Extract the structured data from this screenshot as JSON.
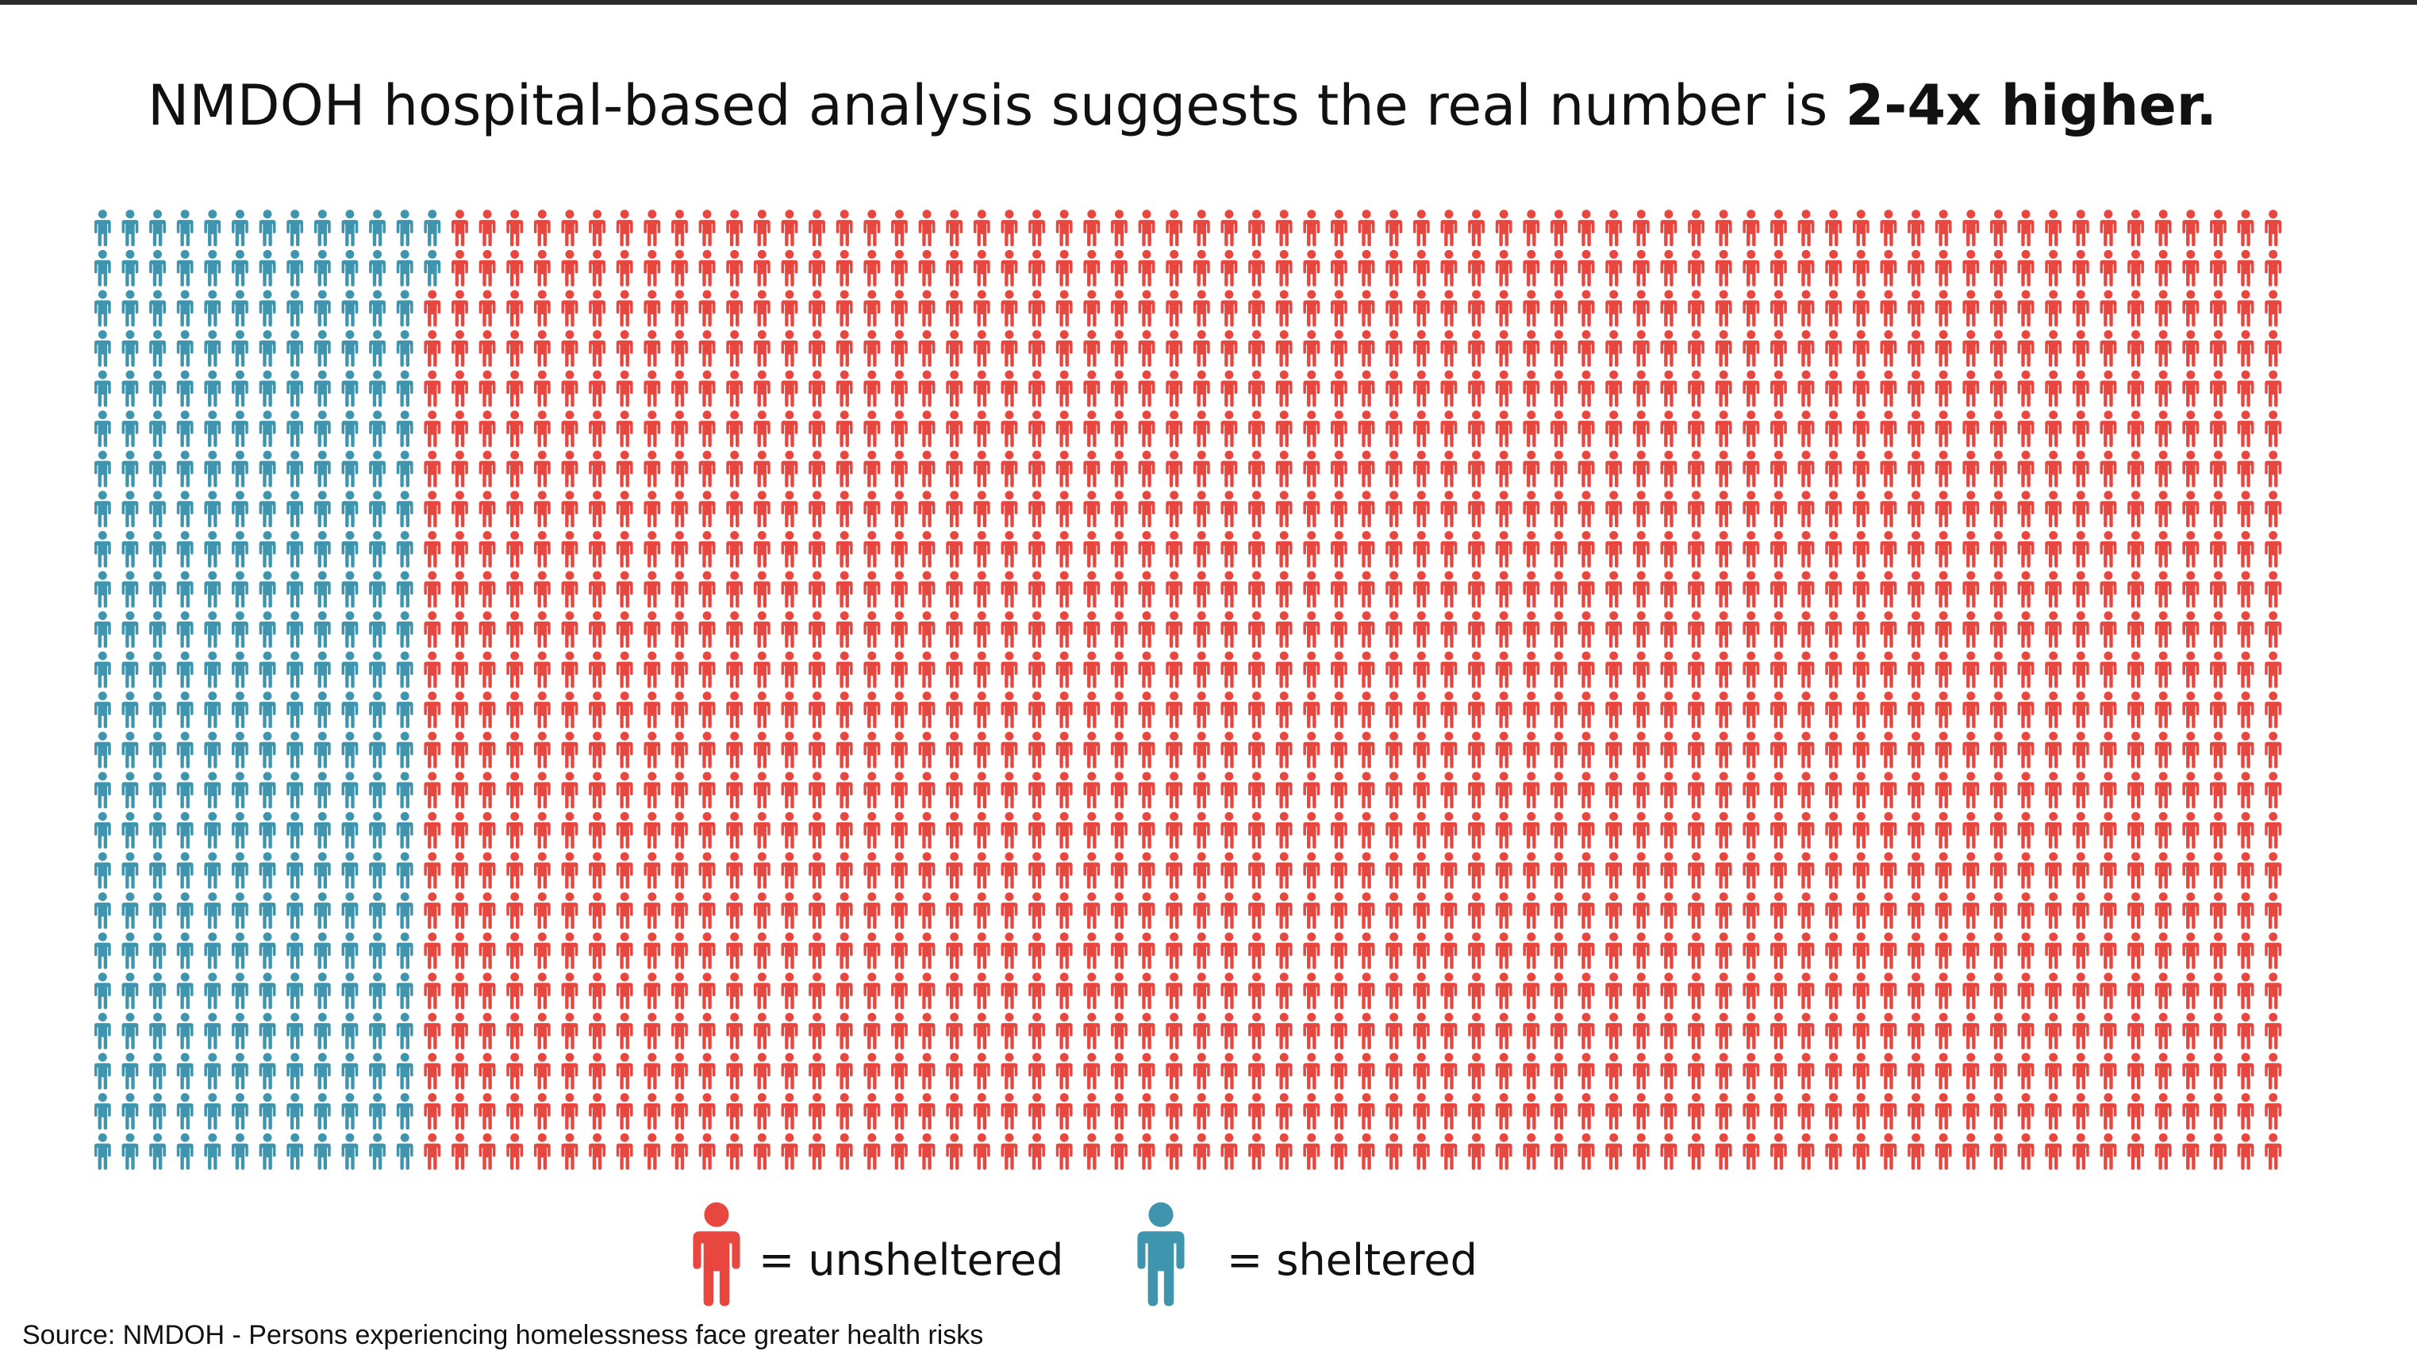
{
  "title": {
    "prefix": "NMDOH hospital-based analysis suggests the real number is",
    "emphasis": "2-4x higher."
  },
  "chart_data": {
    "type": "waffle",
    "rows": 24,
    "columns": 80,
    "total": 1920,
    "order": "column-major, top-to-bottom, left-to-right",
    "series": [
      {
        "name": "sheltered",
        "count": 290,
        "color": "#3f94ae"
      },
      {
        "name": "unsheltered",
        "count": 1630,
        "color": "#e8473f"
      }
    ]
  },
  "legend": [
    {
      "series": "unsheltered",
      "label": "= unsheltered",
      "icon": "person-icon",
      "color": "#e8473f"
    },
    {
      "series": "sheltered",
      "label": "= sheltered",
      "icon": "person-icon",
      "color": "#3f94ae"
    }
  ],
  "source": "Source: NMDOH - Persons experiencing homelessness face greater health risks"
}
